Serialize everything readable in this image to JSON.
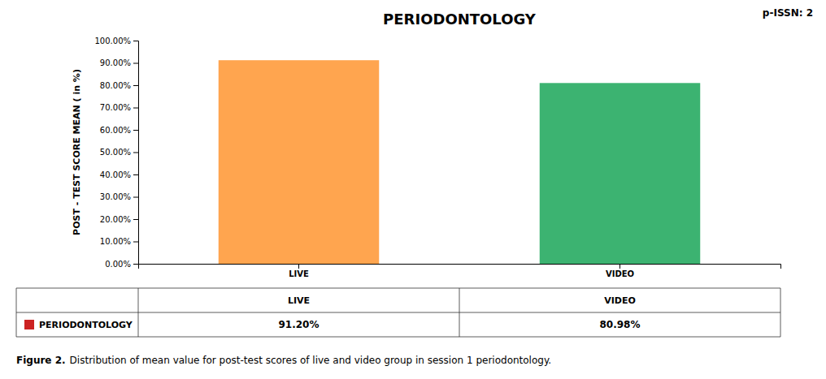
{
  "chart_data": {
    "type": "bar",
    "title": "PERIODONTOLOGY",
    "categories": [
      "LIVE",
      "VIDEO"
    ],
    "series": [
      {
        "name": "PERIODONTOLOGY",
        "color": "#CC2222",
        "colors": [
          "#FFA54F",
          "#3CB371"
        ],
        "values": [
          91.2,
          80.98
        ],
        "value_labels": [
          "91.20%",
          "80.98%"
        ]
      }
    ],
    "ylabel": "POST - TEST SCORE MEAN ( in %)",
    "ylim": [
      0,
      100
    ],
    "yticks": [
      {
        "value": 0,
        "label": "0.00%"
      },
      {
        "value": 10,
        "label": "10.00%"
      },
      {
        "value": 20,
        "label": "20.00%"
      },
      {
        "value": 30,
        "label": "30.00%"
      },
      {
        "value": 40,
        "label": "40.00%"
      },
      {
        "value": 50,
        "label": "50.00%"
      },
      {
        "value": 60,
        "label": "60.00%"
      },
      {
        "value": 70,
        "label": "70.00%"
      },
      {
        "value": 80,
        "label": "80.00%"
      },
      {
        "value": 90,
        "label": "90.00%"
      },
      {
        "value": 100,
        "label": "100.00%"
      }
    ],
    "grid": false,
    "legend": "bottom",
    "annotations": [
      "Figure 2.",
      "Distribution of mean value for post-test scores of live and video group in session 1 periodontology.",
      "p-ISSN: 2"
    ]
  }
}
